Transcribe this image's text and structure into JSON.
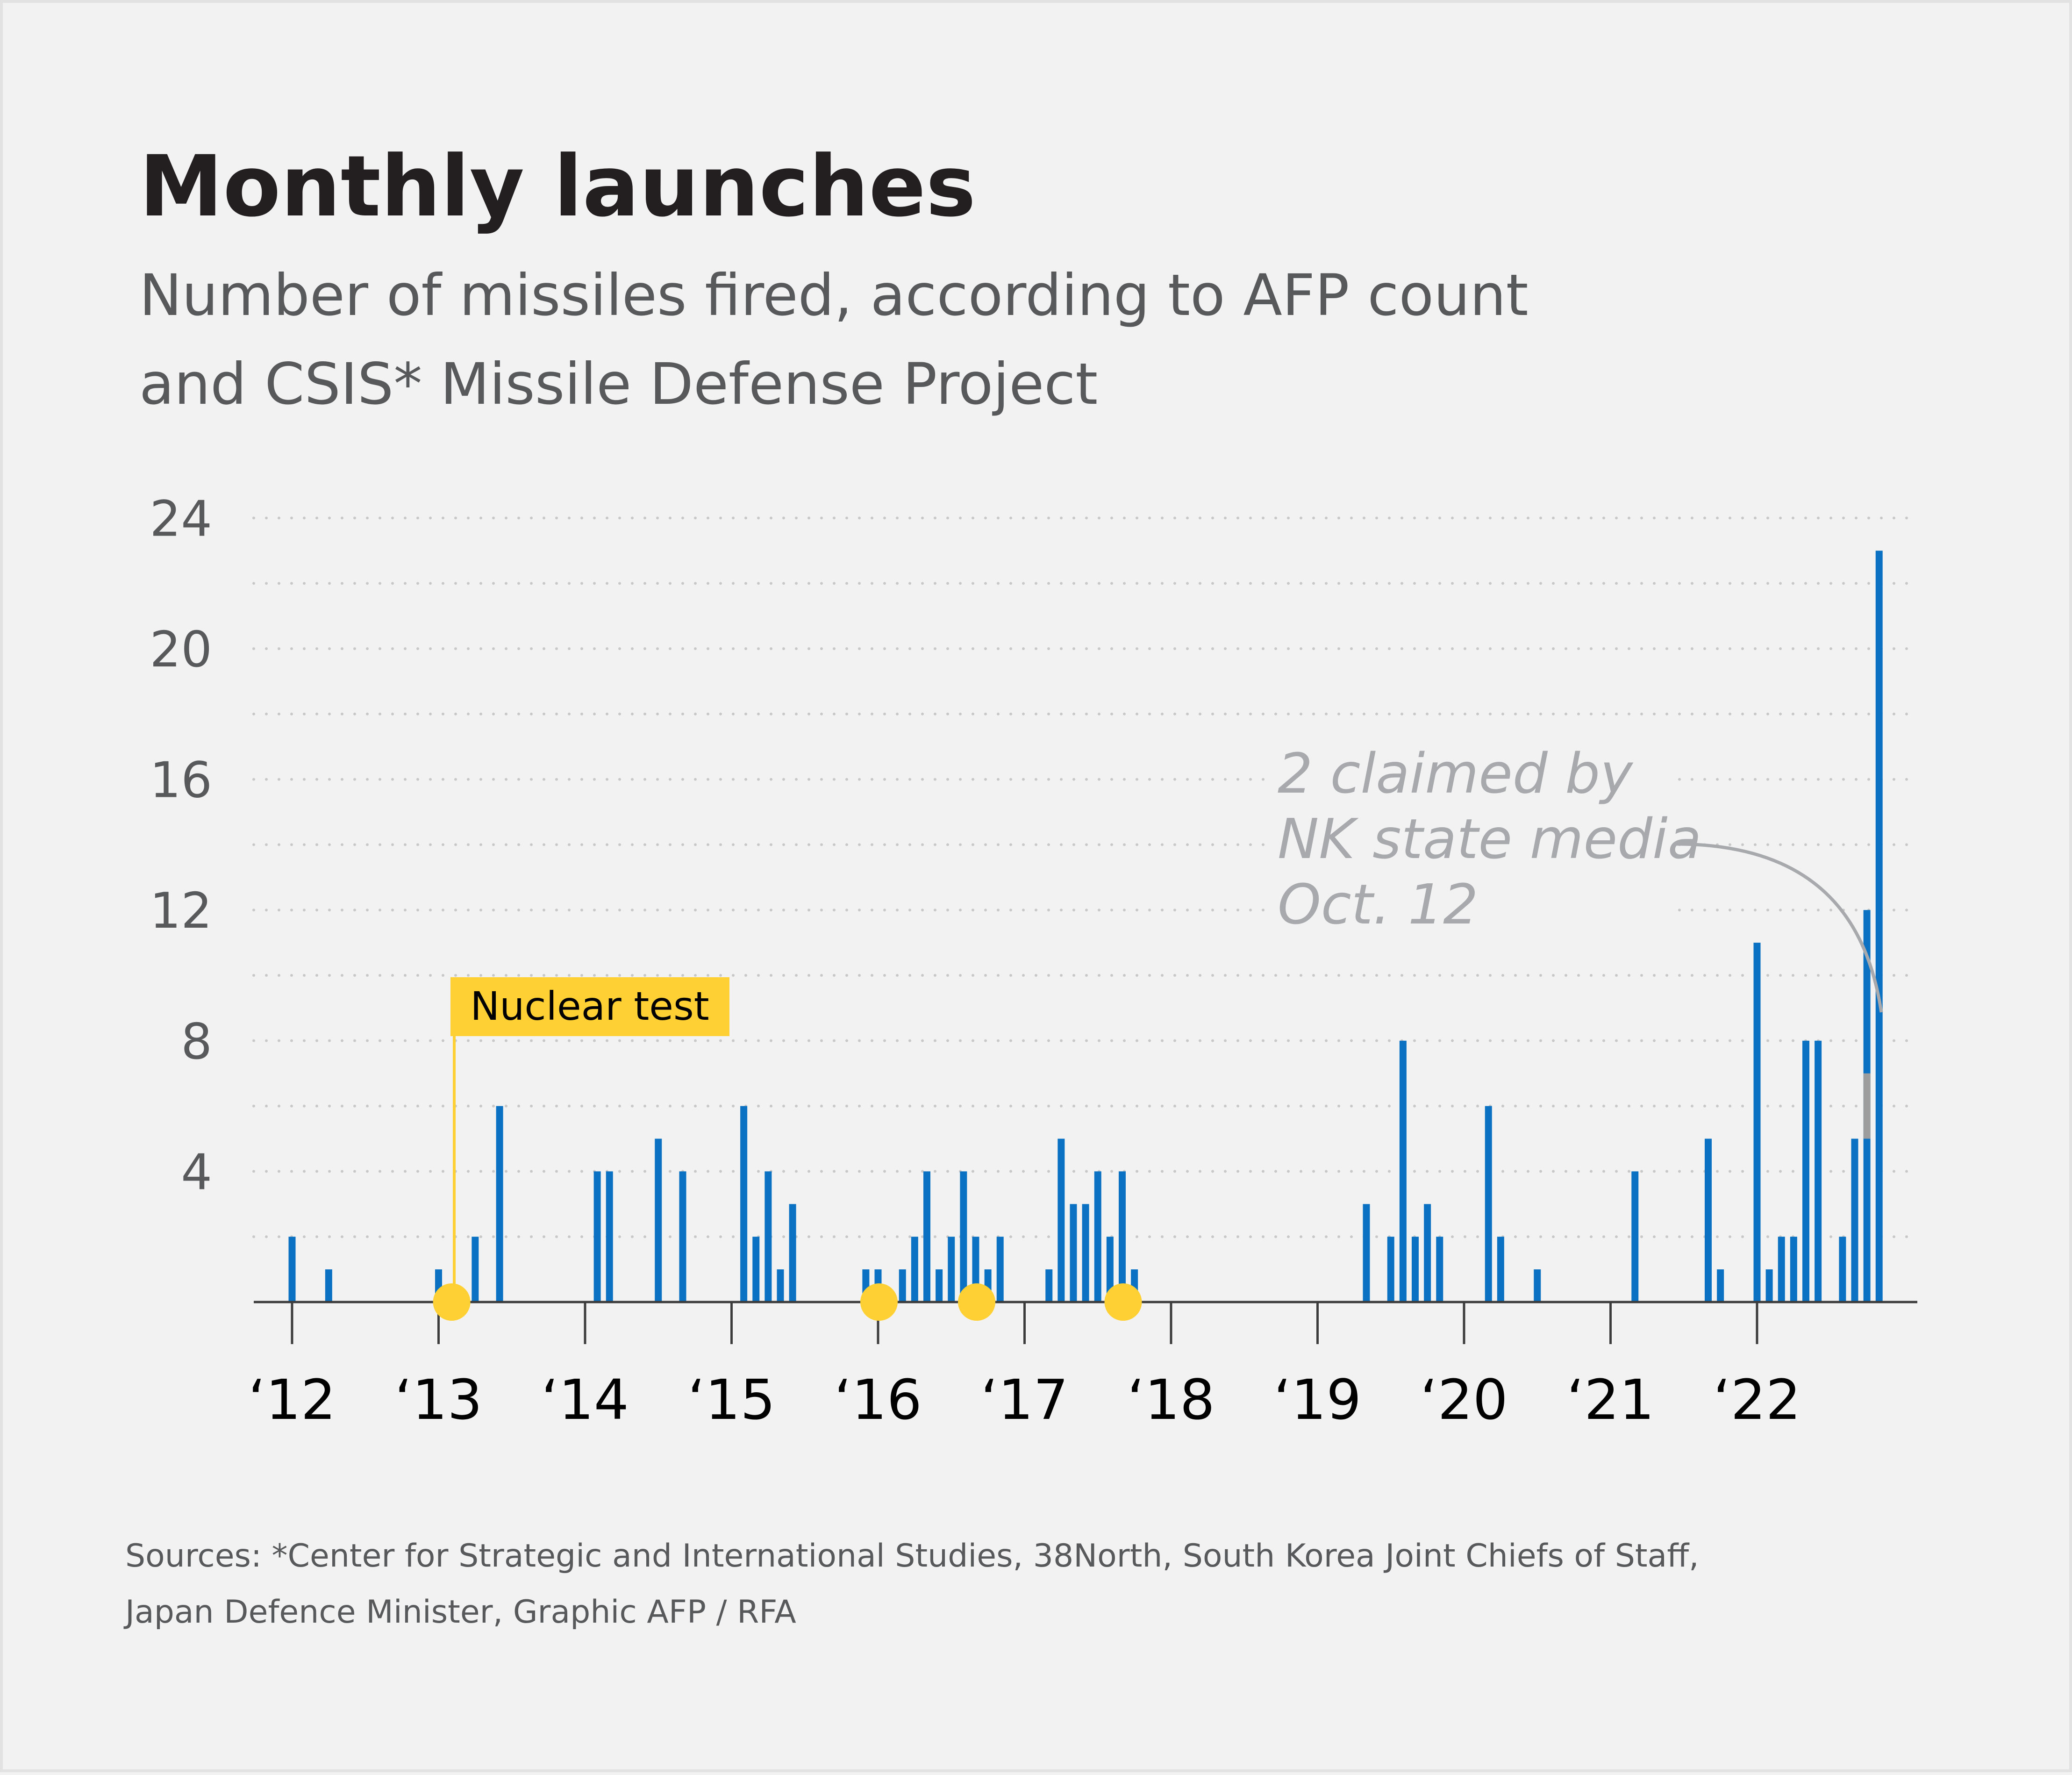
{
  "colors": {
    "bar": "#0b72c3",
    "highlight": "#ffd033",
    "claimed": "#9d9d9d",
    "grid": "#c8c8c8",
    "axis": "#3c3c3c"
  },
  "chart_data": {
    "type": "bar",
    "title": "Monthly launches",
    "subtitle": [
      "Number of missiles fired, according to AFP count",
      "and CSIS* Missile Defense Project"
    ],
    "ylim": [
      0,
      24
    ],
    "yticks": [
      4,
      8,
      12,
      16,
      20,
      24
    ],
    "year_labels": [
      "‘12",
      "‘13",
      "‘14",
      "‘15",
      "‘16",
      "‘17",
      "‘18",
      "‘19",
      "‘20",
      "‘21",
      "‘22"
    ],
    "months": [
      "2012-01",
      "2012-04",
      "2013-01",
      "2013-04",
      "2013-06",
      "2014-02",
      "2014-03",
      "2014-07",
      "2014-09",
      "2015-02",
      "2015-03",
      "2015-04",
      "2015-05",
      "2015-06",
      "2015-12",
      "2016-01",
      "2016-03",
      "2016-04",
      "2016-05",
      "2016-06",
      "2016-07",
      "2016-08",
      "2016-09",
      "2016-10",
      "2016-11",
      "2017-03",
      "2017-04",
      "2017-05",
      "2017-06",
      "2017-07",
      "2017-08",
      "2017-09",
      "2017-10",
      "2019-05",
      "2019-07",
      "2019-08",
      "2019-09",
      "2019-10",
      "2019-11",
      "2020-03",
      "2020-04",
      "2020-07",
      "2021-03",
      "2021-09",
      "2021-10",
      "2022-01",
      "2022-02",
      "2022-03",
      "2022-04",
      "2022-05",
      "2022-06",
      "2022-08",
      "2022-09",
      "2022-10",
      "2022-11"
    ],
    "values": [
      2,
      1,
      1,
      2,
      6,
      4,
      4,
      5,
      4,
      6,
      2,
      4,
      1,
      3,
      1,
      1,
      1,
      2,
      4,
      1,
      2,
      4,
      2,
      1,
      2,
      1,
      5,
      3,
      3,
      4,
      2,
      4,
      1,
      3,
      2,
      8,
      2,
      3,
      2,
      6,
      2,
      1,
      4,
      5,
      1,
      11,
      1,
      2,
      2,
      8,
      8,
      2,
      5,
      12,
      23
    ],
    "claimed_by_nk_media": [
      {
        "month": "2022-10",
        "count": 2
      }
    ],
    "nuclear_tests": [
      "2013-02",
      "2016-01",
      "2016-09",
      "2017-09"
    ],
    "annotations": {
      "nuclear_label": "Nuclear test",
      "claimed_lines": [
        "2 claimed by",
        "NK state media",
        "Oct. 12"
      ]
    }
  },
  "footer": {
    "source_lines": [
      "Sources: *Center for Strategic and International Studies, 38North, South Korea Joint Chiefs of Staff,",
      "Japan Defence Minister, Graphic AFP / RFA"
    ]
  }
}
